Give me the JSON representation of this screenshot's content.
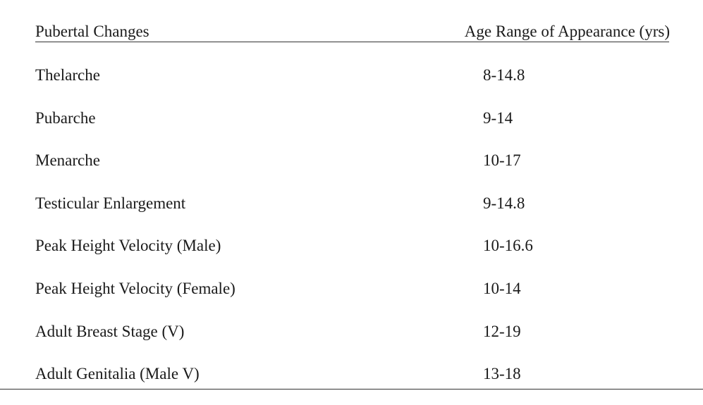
{
  "table": {
    "headers": {
      "left": "Pubertal Changes",
      "right": "Age Range of Appearance (yrs)"
    },
    "rows": [
      {
        "change": "Thelarche",
        "age_range": "8-14.8"
      },
      {
        "change": "Pubarche",
        "age_range": "9-14"
      },
      {
        "change": "Menarche",
        "age_range": "10-17"
      },
      {
        "change": "Testicular Enlargement",
        "age_range": "9-14.8"
      },
      {
        "change": "Peak Height Velocity (Male)",
        "age_range": "10-16.6"
      },
      {
        "change": "Peak Height Velocity (Female)",
        "age_range": "10-14"
      },
      {
        "change": "Adult Breast Stage (V)",
        "age_range": "12-19"
      },
      {
        "change": "Adult Genitalia (Male V)",
        "age_range": "13-18"
      }
    ]
  }
}
